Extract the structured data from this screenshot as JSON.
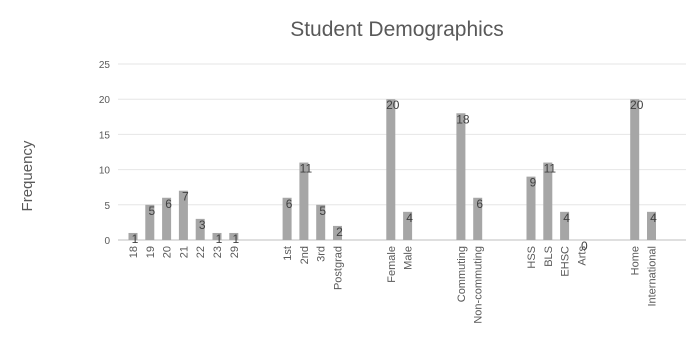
{
  "chart_data": {
    "type": "bar",
    "title": "Student Demographics",
    "ylabel": "Frequency",
    "xlabel": "",
    "ylim": [
      0,
      25
    ],
    "yticks": [
      0,
      5,
      10,
      15,
      20,
      25
    ],
    "grid": true,
    "legend": "none",
    "bar_color": "#a6a6a6",
    "groups": [
      {
        "categories": [
          "18",
          "19",
          "20",
          "21",
          "22",
          "23",
          "29"
        ],
        "values": [
          1,
          5,
          6,
          7,
          3,
          1,
          1
        ]
      },
      {
        "categories": [
          "1st",
          "2nd",
          "3rd",
          "Postgrad"
        ],
        "values": [
          6,
          11,
          5,
          2
        ]
      },
      {
        "categories": [
          "Female",
          "Male"
        ],
        "values": [
          20,
          4
        ]
      },
      {
        "categories": [
          "Commuting",
          "Non-commuting"
        ],
        "values": [
          18,
          6
        ]
      },
      {
        "categories": [
          "HSS",
          "BLS",
          "EHSC",
          "Arts"
        ],
        "values": [
          9,
          11,
          4,
          0
        ]
      },
      {
        "categories": [
          "Home",
          "International"
        ],
        "values": [
          20,
          4
        ]
      }
    ]
  }
}
